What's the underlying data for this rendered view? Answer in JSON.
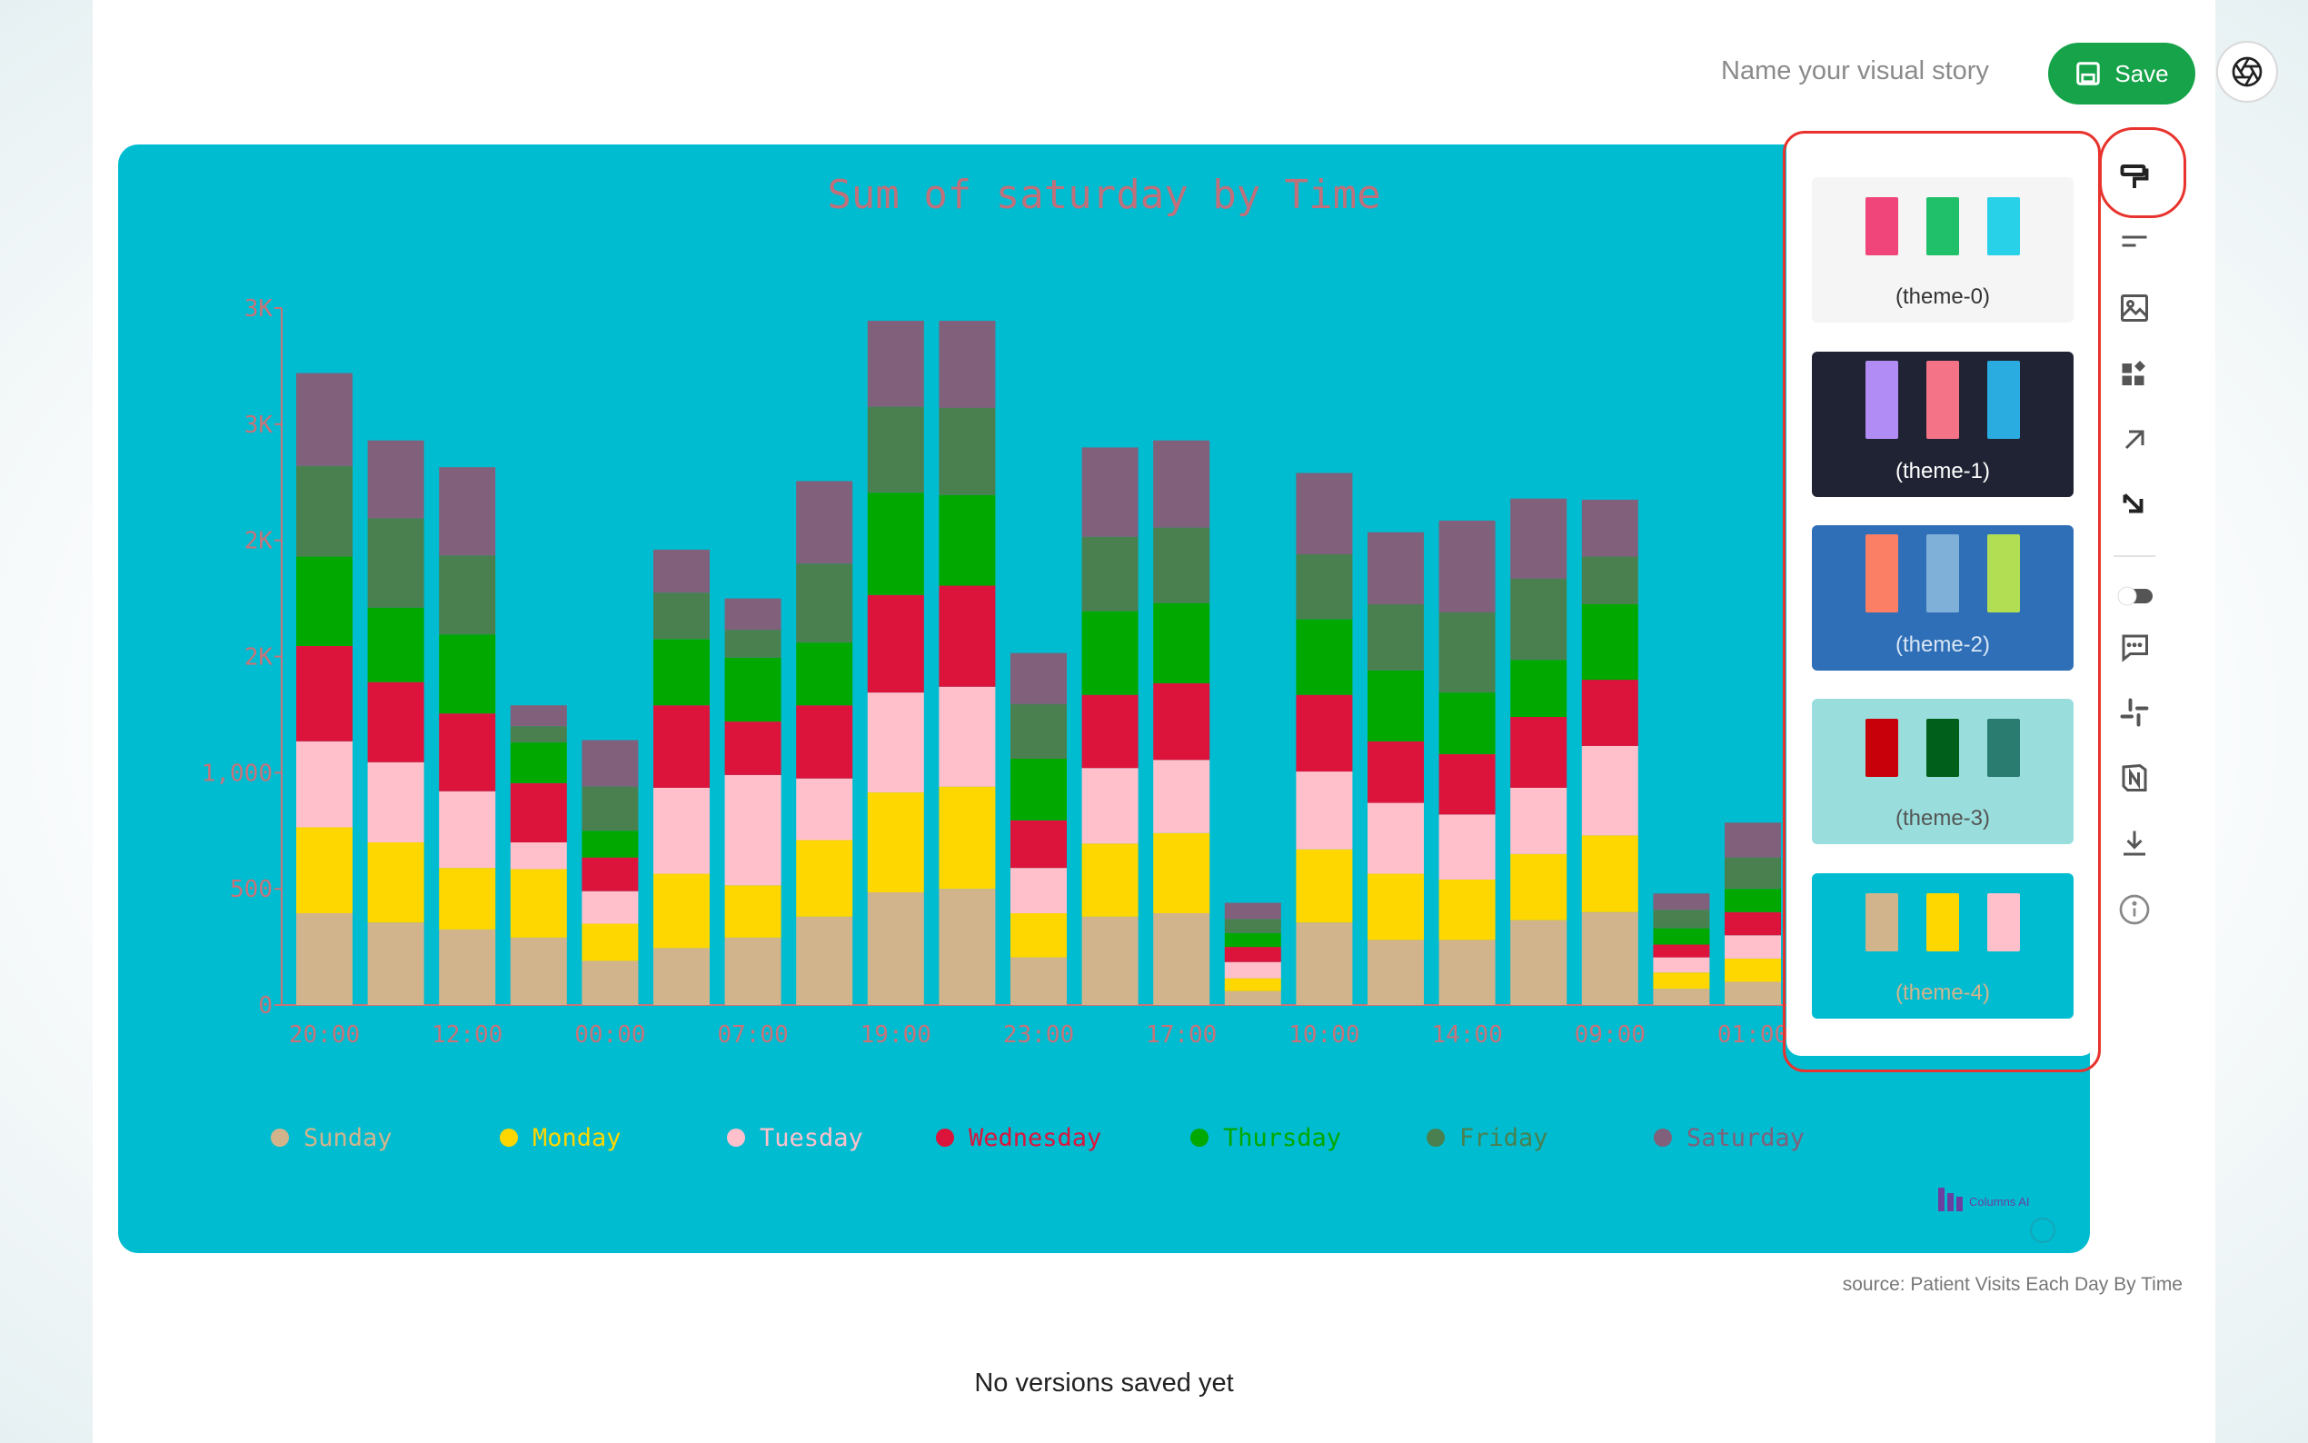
{
  "header": {
    "story_name_placeholder": "Name your visual story",
    "save_label": "Save"
  },
  "toolbar": {
    "icons": [
      "paint-format-icon",
      "text-lines-icon",
      "image-icon",
      "widgets-icon",
      "arrow-up-right-icon",
      "arrow-down-right-icon",
      "toggle-icon",
      "comment-icon",
      "slack-icon",
      "notion-icon",
      "download-icon",
      "info-icon"
    ]
  },
  "theme_panel": {
    "themes": [
      {
        "label": "(theme-0)",
        "background": "#f5f5f5",
        "label_color": "#333333",
        "swatches": [
          "#f0457a",
          "#20c06a",
          "#28d0e8"
        ]
      },
      {
        "label": "(theme-1)",
        "background": "#1f2333",
        "label_color": "#ffffff",
        "swatches": [
          "#b18cf5",
          "#f47387",
          "#2aace0"
        ]
      },
      {
        "label": "(theme-2)",
        "background": "#2f6fb7",
        "label_color": "#d8e6f5",
        "swatches": [
          "#fa7f64",
          "#7fb0d8",
          "#b2de54"
        ]
      },
      {
        "label": "(theme-3)",
        "background": "#99dedd",
        "label_color": "#555555",
        "swatches": [
          "#c8000a",
          "#005f1a",
          "#2a7c70"
        ]
      },
      {
        "label": "(theme-4)",
        "background": "#00bcd0",
        "label_color": "#d2b48c",
        "swatches": [
          "#d2b48c",
          "#ffd700",
          "#ffc0cb"
        ]
      }
    ]
  },
  "chart_data": {
    "type": "bar",
    "stacked": true,
    "title": "Sum of saturday by Time",
    "x_tick_labels": [
      "20:00",
      "12:00",
      "00:00",
      "07:00",
      "19:00",
      "23:00",
      "17:00",
      "10:00",
      "14:00",
      "09:00",
      "01:00"
    ],
    "y_tick_labels": [
      "0",
      "500",
      "1,000",
      "2K",
      "2K",
      "3K",
      "3K"
    ],
    "y_tick_values": [
      0,
      500,
      1000,
      1500,
      2000,
      2500,
      3000
    ],
    "ylim": [
      0,
      3000
    ],
    "grid": false,
    "legend_position": "bottom",
    "colors": [
      "#d2b48c",
      "#ffd700",
      "#ffc0cb",
      "#dc143c",
      "#00a800",
      "#4a8050",
      "#80607a"
    ],
    "categories": [
      "20:00",
      "",
      "12:00",
      "",
      "00:00",
      "",
      "07:00",
      "",
      "19:00",
      "",
      "23:00",
      "",
      "17:00",
      "",
      "10:00",
      "",
      "14:00",
      "",
      "09:00",
      "",
      "01:00"
    ],
    "series": [
      {
        "name": "Sunday",
        "values": [
          395,
          355,
          325,
          290,
          190,
          245,
          290,
          380,
          485,
          500,
          205,
          380,
          395,
          60,
          355,
          280,
          280,
          365,
          400,
          70,
          100
        ]
      },
      {
        "name": "Monday",
        "values": [
          370,
          345,
          265,
          295,
          160,
          320,
          225,
          330,
          430,
          440,
          190,
          315,
          345,
          55,
          315,
          285,
          260,
          285,
          330,
          70,
          100
        ]
      },
      {
        "name": "Tuesday",
        "values": [
          370,
          345,
          330,
          115,
          140,
          370,
          475,
          265,
          430,
          430,
          195,
          325,
          315,
          70,
          335,
          305,
          280,
          285,
          385,
          65,
          100
        ]
      },
      {
        "name": "Wednesday",
        "values": [
          410,
          345,
          335,
          255,
          145,
          355,
          230,
          315,
          420,
          435,
          205,
          315,
          330,
          65,
          330,
          265,
          260,
          305,
          285,
          55,
          100
        ]
      },
      {
        "name": "Thursday",
        "values": [
          385,
          320,
          340,
          175,
          115,
          285,
          275,
          270,
          440,
          390,
          265,
          360,
          345,
          60,
          325,
          305,
          265,
          245,
          325,
          70,
          100
        ]
      },
      {
        "name": "Friday",
        "values": [
          390,
          385,
          340,
          70,
          190,
          200,
          120,
          340,
          370,
          375,
          235,
          320,
          325,
          60,
          280,
          285,
          345,
          350,
          205,
          80,
          135
        ]
      },
      {
        "name": "Saturday",
        "values": [
          400,
          335,
          380,
          90,
          200,
          185,
          135,
          355,
          370,
          375,
          220,
          385,
          375,
          70,
          350,
          310,
          395,
          345,
          245,
          70,
          150
        ]
      }
    ],
    "watermark": "Columns AI"
  },
  "footer": {
    "source": "source: Patient Visits Each Day By Time",
    "versions": "No versions saved yet"
  }
}
